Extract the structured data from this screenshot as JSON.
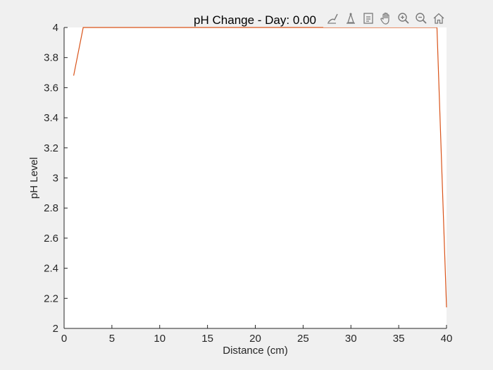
{
  "chart_data": {
    "type": "line",
    "title": "pH Change - Day: 0.00",
    "xlabel": "Distance (cm)",
    "ylabel": "pH Level",
    "xlim": [
      0,
      40
    ],
    "ylim": [
      2,
      4
    ],
    "x_ticks": [
      "0",
      "5",
      "10",
      "15",
      "20",
      "25",
      "30",
      "35",
      "40"
    ],
    "y_ticks": [
      "2",
      "2.2",
      "2.4",
      "2.6",
      "2.8",
      "3",
      "3.2",
      "3.4",
      "3.6",
      "3.8",
      "4"
    ],
    "grid": false,
    "series": [
      {
        "color": "#d95319",
        "x": [
          1,
          2,
          39,
          40
        ],
        "y": [
          3.68,
          4.0,
          4.0,
          2.14
        ]
      }
    ]
  },
  "toolbar": {
    "icons": [
      "brush-icon",
      "datatip-icon",
      "legend-icon",
      "pan-icon",
      "zoom-in-icon",
      "zoom-out-icon",
      "home-icon"
    ]
  }
}
